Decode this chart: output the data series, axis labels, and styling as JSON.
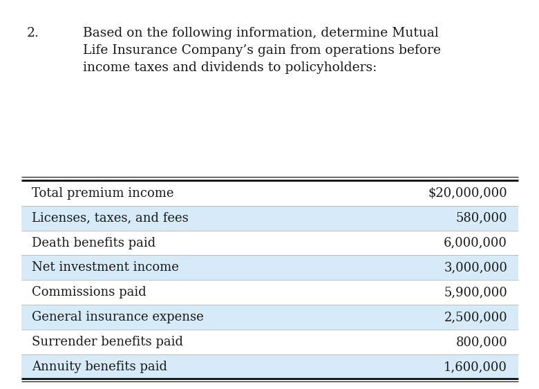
{
  "title_number": "2.",
  "title_text": "Based on the following information, determine Mutual\nLife Insurance Company’s gain from operations before\nincome taxes and dividends to policyholders:",
  "rows": [
    {
      "label": "Total premium income",
      "value": "$20,000,000",
      "shaded": false
    },
    {
      "label": "Licenses, taxes, and fees",
      "value": "580,000",
      "shaded": true
    },
    {
      "label": "Death benefits paid",
      "value": "6,000,000",
      "shaded": false
    },
    {
      "label": "Net investment income",
      "value": "3,000,000",
      "shaded": true
    },
    {
      "label": "Commissions paid",
      "value": "5,900,000",
      "shaded": false
    },
    {
      "label": "General insurance expense",
      "value": "2,500,000",
      "shaded": true
    },
    {
      "label": "Surrender benefits paid",
      "value": "800,000",
      "shaded": false
    },
    {
      "label": "Annuity benefits paid",
      "value": "1,600,000",
      "shaded": true
    }
  ],
  "bg_color": "#ffffff",
  "shade_color": "#d6eaf8",
  "text_color": "#1a1a1a",
  "title_fontsize": 13.5,
  "row_fontsize": 13.0,
  "top_line_color": "#1a1a1a",
  "bottom_line_color": "#1a1a1a",
  "sep_line_color": "#aaaaaa"
}
